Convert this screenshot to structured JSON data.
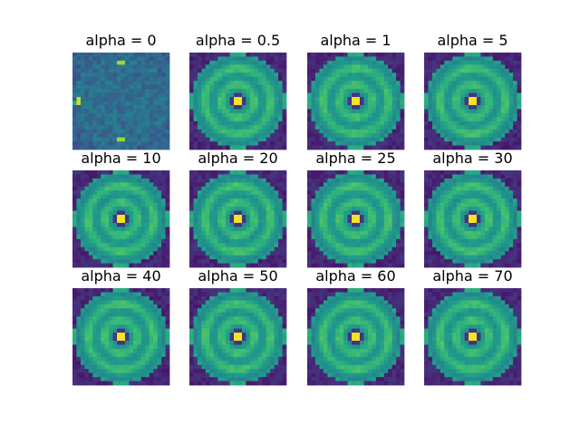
{
  "chart_data": {
    "type": "heatmap",
    "layout": "grid 3x4",
    "colormap": "viridis",
    "axes_visible": false,
    "panels": [
      {
        "title": "alpha = 0",
        "alpha": 0
      },
      {
        "title": "alpha = 0.5",
        "alpha": 0.5
      },
      {
        "title": "alpha = 1",
        "alpha": 1
      },
      {
        "title": "alpha = 5",
        "alpha": 5
      },
      {
        "title": "alpha = 10",
        "alpha": 10
      },
      {
        "title": "alpha = 20",
        "alpha": 20
      },
      {
        "title": "alpha = 25",
        "alpha": 25
      },
      {
        "title": "alpha = 30",
        "alpha": 30
      },
      {
        "title": "alpha = 40",
        "alpha": 40
      },
      {
        "title": "alpha = 50",
        "alpha": 50
      },
      {
        "title": "alpha = 60",
        "alpha": 60
      },
      {
        "title": "alpha = 70",
        "alpha": 70
      }
    ]
  }
}
